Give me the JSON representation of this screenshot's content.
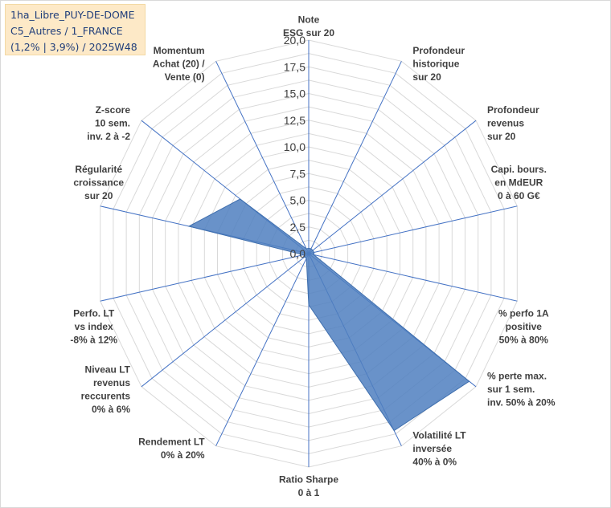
{
  "title_box": {
    "line1": "1ha_Libre_PUY-DE-DOME",
    "line2": "C5_Autres / 1_FRANCE",
    "line3": "(1,2% | 3,9%) / 2025W48"
  },
  "chart_data": {
    "type": "radar",
    "rmax": 20,
    "ticks": [
      "0,0",
      "2,5",
      "5,0",
      "7,5",
      "10,0",
      "12,5",
      "15,0",
      "17,5",
      "20,0"
    ],
    "tick_values": [
      0,
      2.5,
      5,
      7.5,
      10,
      12.5,
      15,
      17.5,
      20
    ],
    "grid": true,
    "colors": {
      "fill": "#4f7fbf",
      "stroke": "#3f6fae",
      "grid": "#d9d9d9",
      "spoke": "#4472c4"
    },
    "axes": [
      {
        "label": [
          "Note",
          "ESG sur 20"
        ],
        "value": 0.5
      },
      {
        "label": [
          "Profondeur",
          "historique",
          "sur 20"
        ],
        "value": 0.5
      },
      {
        "label": [
          "Profondeur",
          "revenus",
          "sur 20"
        ],
        "value": 0.5
      },
      {
        "label": [
          "Capi. bours.",
          "en MdEUR",
          "0 à 60 G€"
        ],
        "value": 0.5
      },
      {
        "label": [
          "% perfo 1A",
          "positive",
          "50% à 80%"
        ],
        "value": 0.5
      },
      {
        "label": [
          "% perte max.",
          "sur 1 sem.",
          "inv. 50% à 20%"
        ],
        "value": 19.2
      },
      {
        "label": [
          "Volatilité LT",
          "inversée",
          "40% à 0%"
        ],
        "value": 18.4
      },
      {
        "label": [
          "Ratio Sharpe",
          "0 à 1"
        ],
        "value": 4.8
      },
      {
        "label": [
          "Rendement LT",
          "0% à 20%"
        ],
        "value": 0.5
      },
      {
        "label": [
          "Niveau LT",
          "revenus",
          "reccurents",
          "0% à 6%"
        ],
        "value": 0.5
      },
      {
        "label": [
          "Perfo. LT",
          "vs index",
          "-8% à 12%"
        ],
        "value": 0.5
      },
      {
        "label": [
          "Régularité",
          "croissance",
          "sur 20"
        ],
        "value": 11.5
      },
      {
        "label": [
          "Z-score",
          "10 sem.",
          "inv. 2 à -2"
        ],
        "value": 8.2
      },
      {
        "label": [
          "Momentum",
          "Achat (20) /",
          "Vente (0)"
        ],
        "value": 0.5
      }
    ]
  }
}
